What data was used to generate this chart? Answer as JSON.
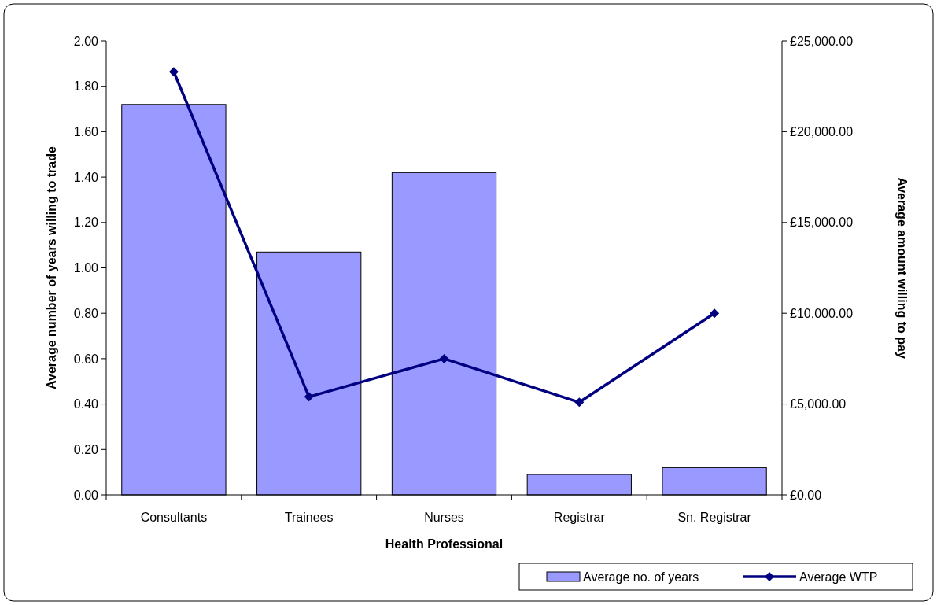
{
  "chart_data": {
    "type": "bar",
    "xlabel": "Health Professional",
    "ylabel": "Average number of years willing to trade",
    "y2label": "Average amount willing to pay",
    "categories": [
      "Consultants",
      "Trainees",
      "Nurses",
      "Registrar",
      "Sn. Registrar"
    ],
    "series": [
      {
        "name": "Average no. of years",
        "color": "#9999ff",
        "values": [
          1.72,
          1.07,
          1.42,
          0.09,
          0.12
        ]
      },
      {
        "name": "Average WTP",
        "type": "line",
        "axis": "y2",
        "color": "#000080",
        "marker": "diamond",
        "values": [
          23300,
          5400,
          7500,
          5100,
          10000
        ]
      }
    ],
    "ylim": [
      0,
      2
    ],
    "yticks": [
      {
        "value": 0,
        "label": "0.00"
      },
      {
        "value": 0.2,
        "label": "0.20"
      },
      {
        "value": 0.4,
        "label": "0.40"
      },
      {
        "value": 0.6,
        "label": "0.60"
      },
      {
        "value": 0.8,
        "label": "0.80"
      },
      {
        "value": 1,
        "label": "1.00"
      },
      {
        "value": 1.2,
        "label": "1.20"
      },
      {
        "value": 1.4,
        "label": "1.40"
      },
      {
        "value": 1.6,
        "label": "1.60"
      },
      {
        "value": 1.8,
        "label": "1.80"
      },
      {
        "value": 2,
        "label": "2.00"
      }
    ],
    "y2lim": [
      0,
      25000
    ],
    "y2ticks": [
      {
        "value": 0,
        "label": "£0.00"
      },
      {
        "value": 5000,
        "label": "£5,000.00"
      },
      {
        "value": 10000,
        "label": "£10,000.00"
      },
      {
        "value": 15000,
        "label": "£15,000.00"
      },
      {
        "value": 20000,
        "label": "£20,000.00"
      },
      {
        "value": 25000,
        "label": "£25,000.00"
      }
    ],
    "legend": "bottom right",
    "grid": false
  }
}
